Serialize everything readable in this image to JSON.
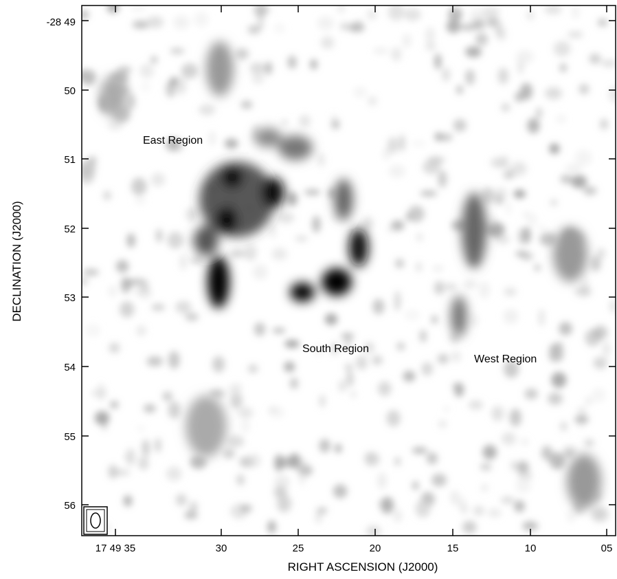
{
  "figure": {
    "x_axis_title": "RIGHT ASCENSION (J2000)",
    "y_axis_title": "DECLINATION (J2000)",
    "x_tick_labels": [
      "17 49 35",
      "30",
      "25",
      "20",
      "15",
      "10",
      "05"
    ],
    "y_tick_labels": [
      "-28 49",
      "50",
      "51",
      "52",
      "53",
      "54",
      "55",
      "56"
    ],
    "region_labels": {
      "east": "East Region",
      "south": "South Region",
      "west": "West Region"
    },
    "colormap": "greyscale (white = low, black = high)",
    "beam_marker": "synthesized beam ellipse in bottom-left box"
  }
}
